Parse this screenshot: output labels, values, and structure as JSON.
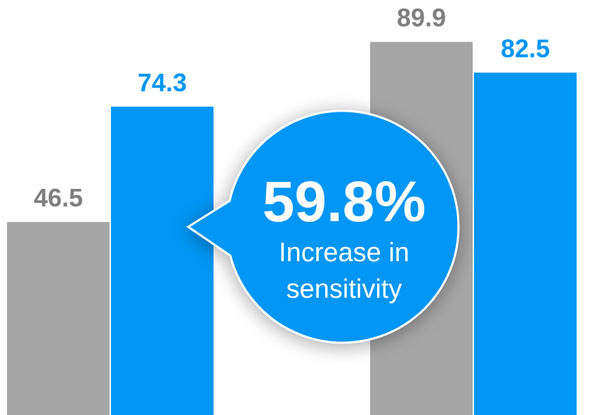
{
  "chart_data": {
    "type": "bar",
    "categories": [
      "",
      ""
    ],
    "series": [
      {
        "values": [
          46.5,
          89.9
        ],
        "color": "#a6a6a6",
        "label_color": "#7f7f7f"
      },
      {
        "values": [
          74.3,
          82.5
        ],
        "color": "#0096f5",
        "label_color": "#0096f5"
      }
    ],
    "value_labels": [
      [
        "46.5",
        "89.9"
      ],
      [
        "74.3",
        "82.5"
      ]
    ],
    "ylim": [
      0,
      100
    ],
    "grid": false,
    "legend": "none"
  },
  "callout": {
    "headline": "59.8%",
    "line1": "Increase in",
    "line2": "sensitivity",
    "fill": "#0096f5",
    "text_color": "#ffffff"
  }
}
